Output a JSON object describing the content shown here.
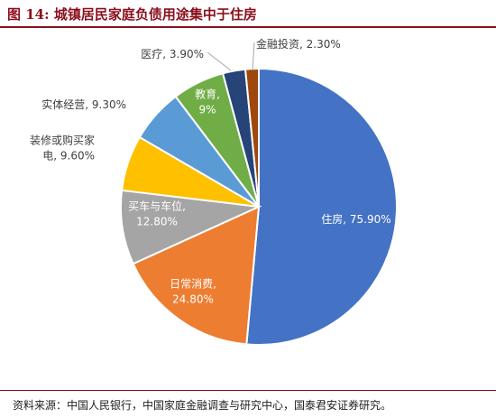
{
  "header": {
    "title": "图 14:  城镇居民家庭负债用途集中于住房"
  },
  "chart_data": {
    "type": "pie",
    "title": "",
    "slices": [
      {
        "name": "住房",
        "value": 75.9,
        "label_lines": [
          "住房, 75.90%"
        ],
        "color": "#4472c4",
        "label_color": "#ffffff"
      },
      {
        "name": "日常消费",
        "value": 24.8,
        "label_lines": [
          "日常消费,",
          "24.80%"
        ],
        "color": "#ed7d31",
        "label_color": "#ffffff"
      },
      {
        "name": "买车与车位",
        "value": 12.8,
        "label_lines": [
          "买车与车位,",
          "12.80%"
        ],
        "color": "#a5a5a5",
        "label_color": "#ffffff"
      },
      {
        "name": "装修或购买家电",
        "value": 9.6,
        "label_lines": [
          "装修或购买家",
          "电, 9.60%"
        ],
        "color": "#ffc000",
        "label_color": "#404040"
      },
      {
        "name": "实体经营",
        "value": 9.3,
        "label_lines": [
          "实体经营, 9.30%"
        ],
        "color": "#5b9bd5",
        "label_color": "#404040"
      },
      {
        "name": "教育",
        "value": 9,
        "label_lines": [
          "教育,",
          "9%"
        ],
        "color": "#70ad47",
        "label_color": "#ffffff"
      },
      {
        "name": "医疗",
        "value": 3.9,
        "label_lines": [
          "医疗, 3.90%"
        ],
        "color": "#264478",
        "label_color": "#404040"
      },
      {
        "name": "金融投资",
        "value": 2.3,
        "label_lines": [
          "金融投资, 2.30%"
        ],
        "color": "#9e480e",
        "label_color": "#404040"
      }
    ]
  },
  "footer": {
    "source": "资料来源：中国人民银行，中国家庭金融调查与研究中心，国泰君安证券研究。"
  }
}
